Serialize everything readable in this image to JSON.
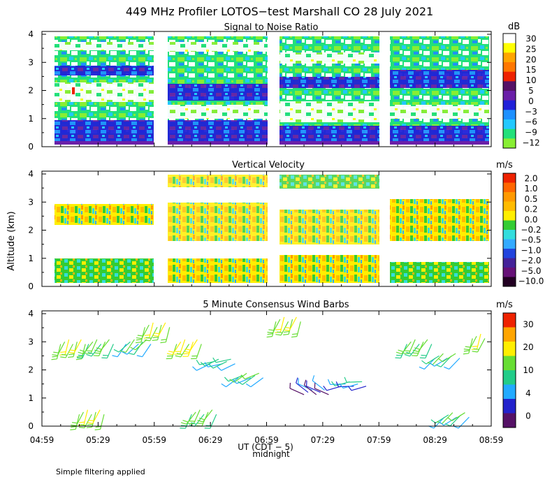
{
  "title": "449 MHz Profiler LOTOS−test Marshall CO 28 July 2021",
  "ylabel": "Altitude (km)",
  "xlabel": "UT (CDT − 5)",
  "xlabel_note": "midnight",
  "footnote": "Simple filtering applied",
  "time_ticks": [
    "04:59",
    "05:29",
    "05:59",
    "06:29",
    "06:59",
    "07:29",
    "07:59",
    "08:29",
    "08:59"
  ],
  "altitude_ticks": [
    "0",
    "1",
    "2",
    "3",
    "4"
  ],
  "chart_data": [
    {
      "type": "heatmap",
      "title": "Signal to Noise Ratio",
      "units": "dB",
      "ylim": [
        0,
        4.1
      ],
      "xlim_minutes_from_0459": [
        0,
        240
      ],
      "data_gaps_minutes": [
        [
          60,
          66
        ],
        [
          120,
          126
        ],
        [
          180,
          186
        ]
      ],
      "colorbar_labels": [
        "30",
        "25",
        "20",
        "15",
        "10",
        "5",
        "0",
        "−3",
        "−6",
        "−9",
        "−12"
      ],
      "colorbar_colors": [
        "#ffffff",
        "#ffff00",
        "#ffa500",
        "#ff7700",
        "#ee2200",
        "#551166",
        "#6a1fa8",
        "#2020d8",
        "#1e90ff",
        "#22c8ff",
        "#22e07a",
        "#88ee33"
      ],
      "layers": [
        {
          "alt_km": [
            0.2,
            0.7
          ],
          "level": "0"
        },
        {
          "alt_km": [
            0.7,
            1.5
          ],
          "level": "−9"
        },
        {
          "alt_km": [
            1.5,
            2.3
          ],
          "level": "30"
        },
        {
          "alt_km": [
            2.3,
            2.8
          ],
          "level": "0"
        },
        {
          "alt_km": [
            2.8,
            3.6
          ],
          "level": "−9"
        },
        {
          "alt_km": [
            3.6,
            4.0
          ],
          "level": "30"
        }
      ]
    },
    {
      "type": "heatmap",
      "title": "Vertical Velocity",
      "units": "m/s",
      "ylim": [
        0,
        4.1
      ],
      "xlim_minutes_from_0459": [
        0,
        240
      ],
      "colorbar_labels": [
        "2.0",
        "1.0",
        "0.5",
        "0.2",
        "0.0",
        "−0.2",
        "−0.5",
        "−1.0",
        "−2.0",
        "−5.0",
        "−10.0"
      ],
      "colorbar_colors": [
        "#ee2200",
        "#ff6600",
        "#ff9900",
        "#ffbb00",
        "#ffee00",
        "#33cc33",
        "#33dddd",
        "#33aaff",
        "#2244dd",
        "#442299",
        "#661177",
        "#220022"
      ],
      "layers": [
        {
          "alt_km": [
            0.2,
            0.5
          ],
          "value": 0.0
        },
        {
          "alt_km": [
            0.5,
            1.0
          ],
          "value": -0.2
        },
        {
          "alt_km": [
            2.0,
            3.0
          ],
          "value": 0.2
        },
        {
          "alt_km": [
            3.2,
            4.0
          ],
          "value": 0.0
        }
      ]
    },
    {
      "type": "scatter",
      "title": "5 Minute Consensus Wind Barbs",
      "units": "m/s",
      "ylim": [
        0,
        4.1
      ],
      "xlim_minutes_from_0459": [
        0,
        240
      ],
      "colorbar_labels": [
        "30",
        "20",
        "10",
        "4",
        "0"
      ],
      "colorbar_colors": [
        "#ee2200",
        "#ffa500",
        "#ffee00",
        "#66dd33",
        "#22cc88",
        "#22aaff",
        "#2222cc",
        "#551166"
      ],
      "barbs": [
        {
          "t_min": 10,
          "alt_km": 3.0,
          "speed": 10,
          "dir_deg": 200
        },
        {
          "t_min": 25,
          "alt_km": 3.0,
          "speed": 8,
          "dir_deg": 210
        },
        {
          "t_min": 45,
          "alt_km": 3.0,
          "speed": 6,
          "dir_deg": 220
        },
        {
          "t_min": 55,
          "alt_km": 3.6,
          "speed": 10,
          "dir_deg": 200
        },
        {
          "t_min": 72,
          "alt_km": 3.0,
          "speed": 12,
          "dir_deg": 205
        },
        {
          "t_min": 90,
          "alt_km": 2.3,
          "speed": 5,
          "dir_deg": 250
        },
        {
          "t_min": 105,
          "alt_km": 1.8,
          "speed": 6,
          "dir_deg": 240
        },
        {
          "t_min": 125,
          "alt_km": 3.8,
          "speed": 10,
          "dir_deg": 200
        },
        {
          "t_min": 140,
          "alt_km": 1.2,
          "speed": 2,
          "dir_deg": 300
        },
        {
          "t_min": 160,
          "alt_km": 1.5,
          "speed": 4,
          "dir_deg": 260
        },
        {
          "t_min": 195,
          "alt_km": 3.0,
          "speed": 8,
          "dir_deg": 210
        },
        {
          "t_min": 210,
          "alt_km": 2.5,
          "speed": 6,
          "dir_deg": 230
        },
        {
          "t_min": 230,
          "alt_km": 3.2,
          "speed": 10,
          "dir_deg": 200
        },
        {
          "t_min": 20,
          "alt_km": 0.5,
          "speed": 10,
          "dir_deg": 200
        },
        {
          "t_min": 80,
          "alt_km": 0.5,
          "speed": 8,
          "dir_deg": 210
        },
        {
          "t_min": 215,
          "alt_km": 0.4,
          "speed": 6,
          "dir_deg": 230
        }
      ]
    }
  ]
}
